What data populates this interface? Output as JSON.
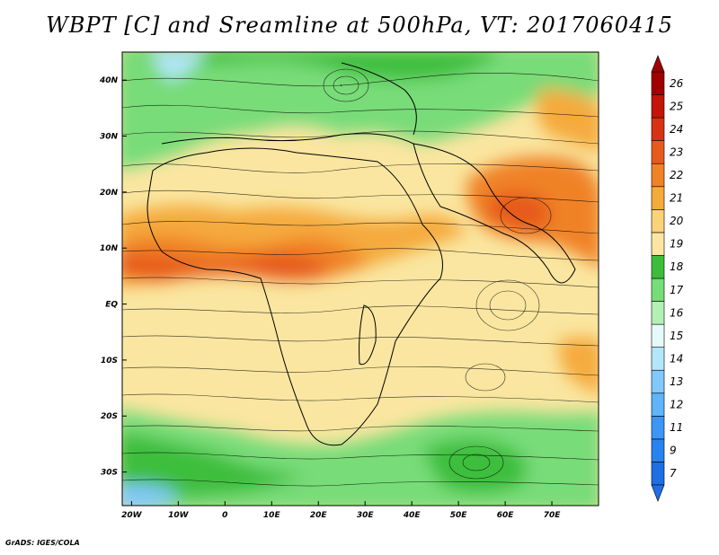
{
  "title": "WBPT [C] and Sreamline at 500hPa, VT: 2017060415",
  "footer": "GrADS: IGES/COLA",
  "map": {
    "lon_range": [
      -22,
      80
    ],
    "lat_range": [
      -36,
      45
    ],
    "lon_ticks": [
      {
        "value": -20,
        "label": "20W"
      },
      {
        "value": -10,
        "label": "10W"
      },
      {
        "value": 0,
        "label": "0"
      },
      {
        "value": 10,
        "label": "10E"
      },
      {
        "value": 20,
        "label": "20E"
      },
      {
        "value": 30,
        "label": "30E"
      },
      {
        "value": 40,
        "label": "40E"
      },
      {
        "value": 50,
        "label": "50E"
      },
      {
        "value": 60,
        "label": "60E"
      },
      {
        "value": 70,
        "label": "70E"
      }
    ],
    "lat_ticks": [
      {
        "value": 40,
        "label": "40N"
      },
      {
        "value": 30,
        "label": "30N"
      },
      {
        "value": 20,
        "label": "20N"
      },
      {
        "value": 10,
        "label": "10N"
      },
      {
        "value": 0,
        "label": "EQ"
      },
      {
        "value": -10,
        "label": "10S"
      },
      {
        "value": -20,
        "label": "20S"
      },
      {
        "value": -30,
        "label": "30S"
      }
    ]
  },
  "colorbar": {
    "levels": [
      {
        "label": "7",
        "color": "#1e6ee6"
      },
      {
        "label": "9",
        "color": "#2882f0"
      },
      {
        "label": "11",
        "color": "#3c96f5"
      },
      {
        "label": "12",
        "color": "#5fb4fa"
      },
      {
        "label": "13",
        "color": "#82c8fa"
      },
      {
        "label": "14",
        "color": "#b4e6fa"
      },
      {
        "label": "15",
        "color": "#e6fafa"
      },
      {
        "label": "16",
        "color": "#b4f0b4"
      },
      {
        "label": "17",
        "color": "#78dc78"
      },
      {
        "label": "18",
        "color": "#3cbe3c"
      },
      {
        "label": "19",
        "color": "#fae6a0"
      },
      {
        "label": "20",
        "color": "#fad278"
      },
      {
        "label": "21",
        "color": "#f5aa3c"
      },
      {
        "label": "22",
        "color": "#f08228"
      },
      {
        "label": "23",
        "color": "#e65a1e"
      },
      {
        "label": "24",
        "color": "#d73214"
      },
      {
        "label": "25",
        "color": "#c3140a"
      },
      {
        "label": "26",
        "color": "#a00000"
      }
    ]
  }
}
